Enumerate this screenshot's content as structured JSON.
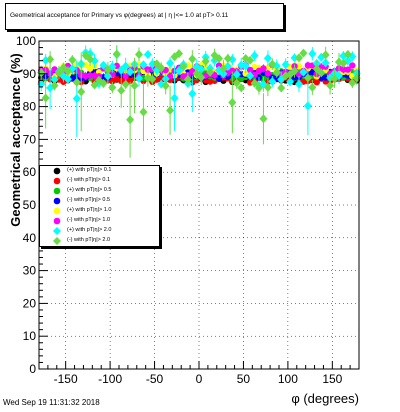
{
  "title": "Geometrical acceptance for Primary vs φ(degrees) at | η |<= 1.0 at pT> 0.11",
  "timestamp": "Wed Sep 19 11:31:32 2018",
  "chart_data": {
    "type": "scatter",
    "xlabel": "φ (degrees)",
    "ylabel": "Geometrical acceptance (%)",
    "xlim": [
      -180,
      180
    ],
    "ylim": [
      0,
      100
    ],
    "xticks": [
      -150,
      -100,
      -50,
      0,
      50,
      100,
      150
    ],
    "yticks": [
      0,
      10,
      20,
      30,
      40,
      50,
      60,
      70,
      80,
      90,
      100
    ],
    "grid": true,
    "legend_position": "left-middle",
    "series": [
      {
        "name": "(+) with pT|η|> 0.1",
        "color": "#000000",
        "marker": "circle",
        "base": 88.5,
        "spread": 1.0
      },
      {
        "name": "(-) with pT|η|> 0.1",
        "color": "#ff0000",
        "marker": "circle",
        "base": 88.3,
        "spread": 1.0
      },
      {
        "name": "(+) with pT|η|> 0.5",
        "color": "#00cc00",
        "marker": "circle",
        "base": 89.8,
        "spread": 1.2
      },
      {
        "name": "(-) with pT|η|> 0.5",
        "color": "#0000ff",
        "marker": "circle",
        "base": 89.6,
        "spread": 1.2
      },
      {
        "name": "(+) with pT|η|> 1.0",
        "color": "#ffff00",
        "marker": "circle",
        "base": 91.0,
        "spread": 1.8
      },
      {
        "name": "(-) with pT|η|> 1.0",
        "color": "#ff00ff",
        "marker": "circle",
        "base": 91.0,
        "spread": 1.8
      },
      {
        "name": "(+) with pT|η|> 2.0",
        "color": "#00ffff",
        "marker": "diamond",
        "base": 91.5,
        "spread": 5.0
      },
      {
        "name": "(-) with pT|η|> 2.0",
        "color": "#66dd44",
        "marker": "diamond",
        "base": 91.0,
        "spread": 5.5
      }
    ]
  }
}
